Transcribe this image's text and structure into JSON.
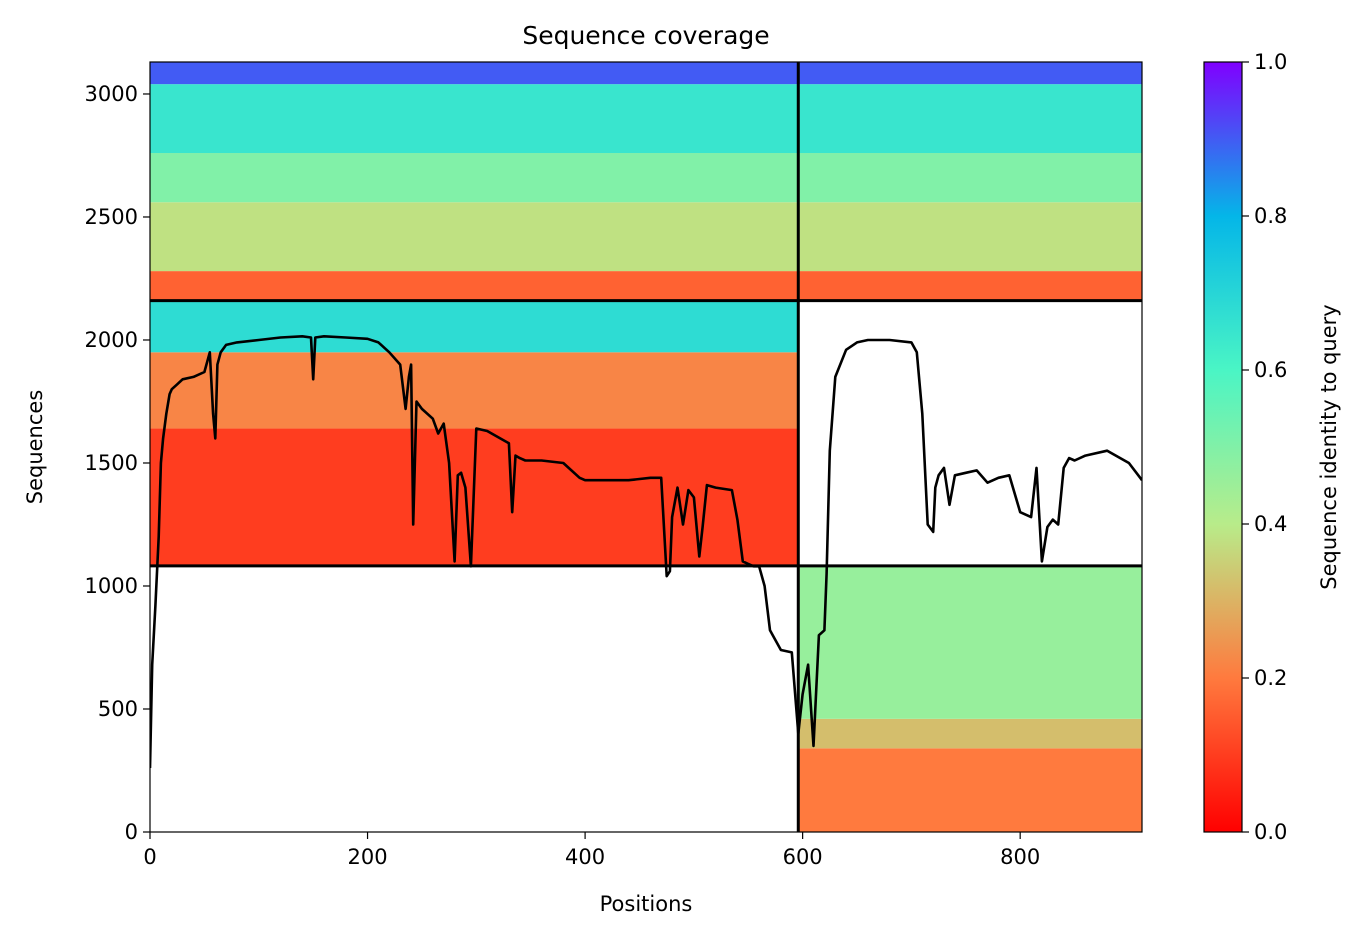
{
  "chart_data": {
    "type": "heatmap",
    "title": "Sequence coverage",
    "xlabel": "Positions",
    "ylabel": "Sequences",
    "colorbar_label": "Sequence identity to query",
    "colormap": "rainbow_r",
    "colorbar_stops": [
      "#ff0000",
      "#ff7a3e",
      "#b8ec8a",
      "#4af5c5",
      "#04b6e8",
      "#8000ff"
    ],
    "xlim": [
      0,
      912
    ],
    "ylim": [
      0,
      3130
    ],
    "xticks": [
      0,
      200,
      400,
      600,
      800
    ],
    "yticks": [
      0,
      500,
      1000,
      1500,
      2000,
      2500,
      3000
    ],
    "colorbar_range": [
      0,
      1
    ],
    "colorbar_ticks": [
      "0.0",
      "0.2",
      "0.4",
      "0.6",
      "0.8",
      "1.0"
    ],
    "chain_boundary_x": 596,
    "group_boundaries_y": [
      1082,
      2160
    ],
    "blocks": [
      {
        "x": [
          0,
          596
        ],
        "y": [
          2160,
          2280
        ],
        "identity": 0.16
      },
      {
        "x": [
          0,
          596
        ],
        "y": [
          2280,
          2560
        ],
        "identity": 0.38
      },
      {
        "x": [
          0,
          596
        ],
        "y": [
          2560,
          2760
        ],
        "identity": 0.5
      },
      {
        "x": [
          0,
          596
        ],
        "y": [
          2760,
          3040
        ],
        "identity": 0.65
      },
      {
        "x": [
          0,
          596
        ],
        "y": [
          3040,
          3130
        ],
        "identity": 0.9
      },
      {
        "x": [
          0,
          596
        ],
        "y": [
          1082,
          1640
        ],
        "identity": 0.1
      },
      {
        "x": [
          0,
          596
        ],
        "y": [
          1640,
          1950
        ],
        "identity": 0.22
      },
      {
        "x": [
          0,
          596
        ],
        "y": [
          1950,
          2160
        ],
        "identity": 0.68
      },
      {
        "x": [
          596,
          912
        ],
        "y": [
          2160,
          2280
        ],
        "identity": 0.16
      },
      {
        "x": [
          596,
          912
        ],
        "y": [
          2280,
          2560
        ],
        "identity": 0.38
      },
      {
        "x": [
          596,
          912
        ],
        "y": [
          2560,
          2760
        ],
        "identity": 0.5
      },
      {
        "x": [
          596,
          912
        ],
        "y": [
          2760,
          3040
        ],
        "identity": 0.65
      },
      {
        "x": [
          596,
          912
        ],
        "y": [
          3040,
          3130
        ],
        "identity": 0.9
      },
      {
        "x": [
          596,
          912
        ],
        "y": [
          0,
          340
        ],
        "identity": 0.2
      },
      {
        "x": [
          596,
          912
        ],
        "y": [
          340,
          460
        ],
        "identity": 0.32
      },
      {
        "x": [
          596,
          912
        ],
        "y": [
          460,
          1082
        ],
        "identity": 0.46
      }
    ],
    "coverage_line": {
      "x": [
        0,
        2,
        5,
        8,
        10,
        12,
        15,
        18,
        20,
        25,
        30,
        40,
        50,
        55,
        58,
        60,
        62,
        65,
        70,
        80,
        100,
        120,
        140,
        148,
        150,
        152,
        160,
        180,
        200,
        210,
        220,
        230,
        235,
        238,
        240,
        242,
        245,
        250,
        260,
        265,
        270,
        275,
        280,
        283,
        286,
        290,
        295,
        300,
        310,
        330,
        333,
        336,
        340,
        345,
        360,
        380,
        395,
        400,
        420,
        440,
        460,
        470,
        475,
        478,
        480,
        485,
        490,
        495,
        500,
        505,
        508,
        512,
        520,
        535,
        540,
        545,
        550,
        555,
        560,
        565,
        570,
        580,
        590,
        596,
        600,
        605,
        610,
        615,
        620,
        622,
        625,
        630,
        640,
        650,
        660,
        680,
        700,
        705,
        710,
        715,
        720,
        722,
        725,
        730,
        735,
        740,
        750,
        760,
        770,
        780,
        790,
        800,
        810,
        815,
        820,
        825,
        830,
        835,
        840,
        845,
        850,
        860,
        880,
        900,
        912
      ],
      "y": [
        260,
        680,
        920,
        1200,
        1500,
        1600,
        1700,
        1780,
        1800,
        1820,
        1840,
        1850,
        1870,
        1950,
        1700,
        1600,
        1900,
        1950,
        1980,
        1990,
        2000,
        2010,
        2015,
        2010,
        1840,
        2010,
        2015,
        2010,
        2005,
        1990,
        1950,
        1900,
        1720,
        1850,
        1900,
        1250,
        1750,
        1720,
        1680,
        1620,
        1660,
        1500,
        1100,
        1450,
        1460,
        1400,
        1080,
        1640,
        1630,
        1580,
        1300,
        1530,
        1520,
        1510,
        1510,
        1500,
        1440,
        1430,
        1430,
        1430,
        1440,
        1440,
        1040,
        1060,
        1280,
        1400,
        1250,
        1390,
        1360,
        1120,
        1240,
        1410,
        1400,
        1390,
        1270,
        1100,
        1090,
        1080,
        1080,
        1000,
        820,
        740,
        730,
        400,
        560,
        680,
        350,
        800,
        820,
        1050,
        1550,
        1850,
        1960,
        1990,
        2000,
        2000,
        1990,
        1950,
        1700,
        1250,
        1220,
        1400,
        1450,
        1480,
        1330,
        1450,
        1460,
        1470,
        1420,
        1440,
        1450,
        1300,
        1280,
        1480,
        1100,
        1240,
        1270,
        1250,
        1480,
        1520,
        1510,
        1530,
        1550,
        1500,
        1430
      ]
    }
  }
}
